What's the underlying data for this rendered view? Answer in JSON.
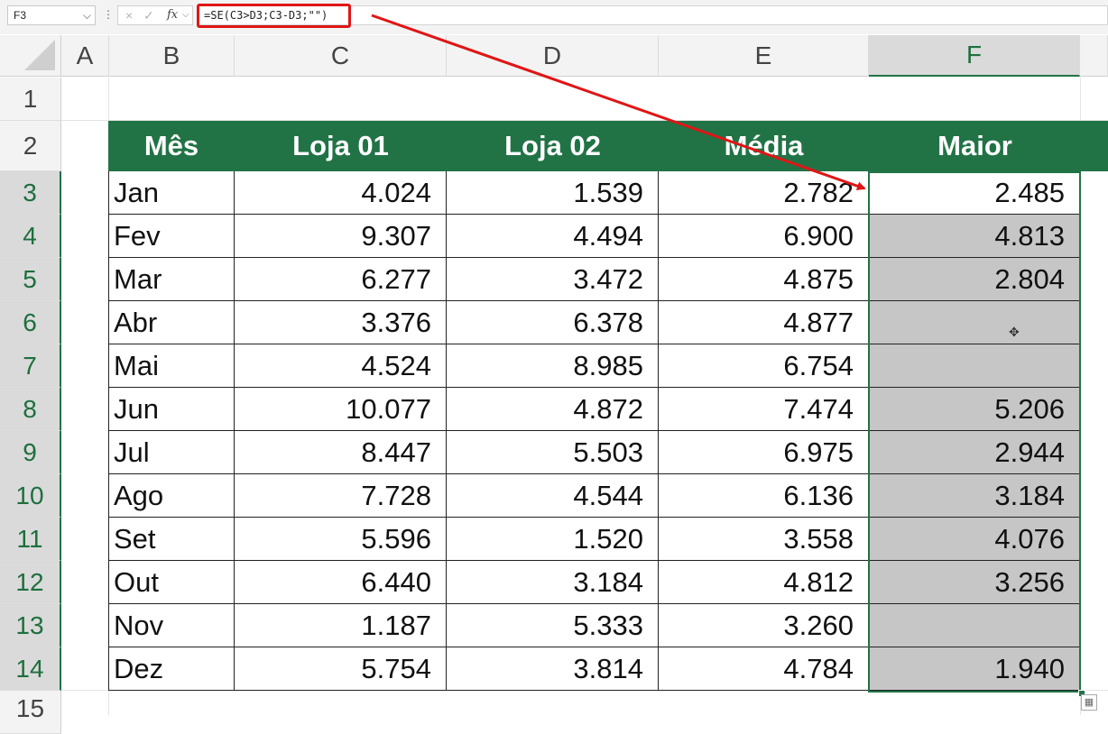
{
  "formula_bar": {
    "name_box": "F3",
    "formula": "=SE(C3>D3;C3-D3;\"\")",
    "cancel_icon": "×",
    "enter_icon": "✓",
    "fx_label": "fx"
  },
  "columns": [
    "A",
    "B",
    "C",
    "D",
    "E",
    "F"
  ],
  "rows": [
    "1",
    "2",
    "3",
    "4",
    "5",
    "6",
    "7",
    "8",
    "9",
    "10",
    "11",
    "12",
    "13",
    "14",
    "15"
  ],
  "selected_column": "F",
  "table": {
    "headers": [
      "Mês",
      "Loja 01",
      "Loja 02",
      "Média",
      "Maior"
    ],
    "rows": [
      [
        "Jan",
        "4.024",
        "1.539",
        "2.782",
        "2.485"
      ],
      [
        "Fev",
        "9.307",
        "4.494",
        "6.900",
        "4.813"
      ],
      [
        "Mar",
        "6.277",
        "3.472",
        "4.875",
        "2.804"
      ],
      [
        "Abr",
        "3.376",
        "6.378",
        "4.877",
        ""
      ],
      [
        "Mai",
        "4.524",
        "8.985",
        "6.754",
        ""
      ],
      [
        "Jun",
        "10.077",
        "4.872",
        "7.474",
        "5.206"
      ],
      [
        "Jul",
        "8.447",
        "5.503",
        "6.975",
        "2.944"
      ],
      [
        "Ago",
        "7.728",
        "4.544",
        "6.136",
        "3.184"
      ],
      [
        "Set",
        "5.596",
        "1.520",
        "3.558",
        "4.076"
      ],
      [
        "Out",
        "6.440",
        "3.184",
        "4.812",
        "3.256"
      ],
      [
        "Nov",
        "1.187",
        "5.333",
        "3.260",
        ""
      ],
      [
        "Dez",
        "5.754",
        "3.814",
        "4.784",
        "1.940"
      ]
    ]
  },
  "colors": {
    "header_green": "#217346",
    "selection_fill": "#c6c6c6",
    "highlight_red": "#e01515"
  }
}
